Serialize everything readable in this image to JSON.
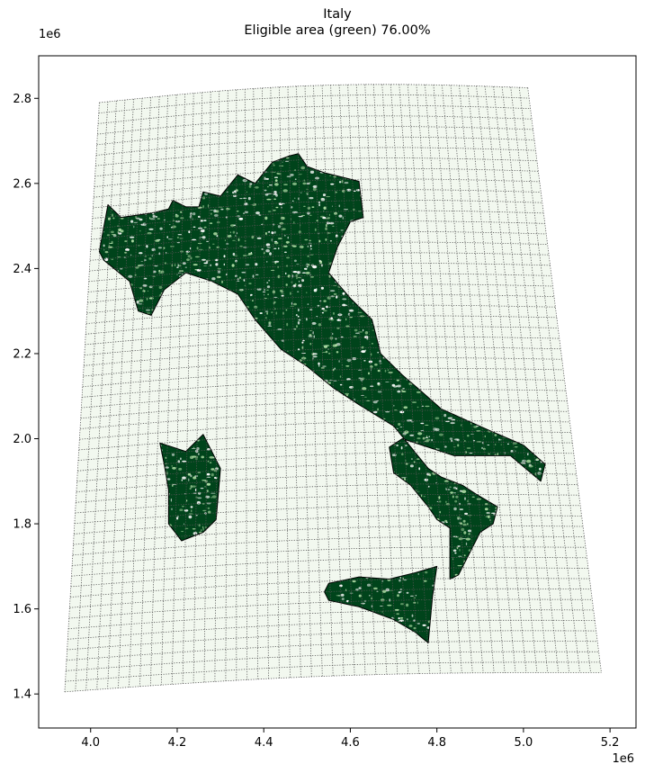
{
  "chart_data": {
    "type": "map",
    "title": "Italy",
    "subtitle": "Eligible area (green) 76.00%",
    "x_offset_label": "1e6",
    "y_offset_label": "1e6",
    "xlim": [
      3.88,
      5.26
    ],
    "ylim": [
      1.32,
      2.9
    ],
    "x_ticks": [
      4.0,
      4.2,
      4.4,
      4.6,
      4.8,
      5.0,
      5.2
    ],
    "x_tick_labels": [
      "4.0",
      "4.2",
      "4.4",
      "4.6",
      "4.8",
      "5.0",
      "5.2"
    ],
    "y_ticks": [
      1.4,
      1.6,
      1.8,
      2.0,
      2.2,
      2.4,
      2.6,
      2.8
    ],
    "y_tick_labels": [
      "1.4",
      "1.6",
      "1.8",
      "2.0",
      "2.2",
      "2.4",
      "2.6",
      "2.8"
    ],
    "eligible_fraction": 0.76,
    "colors": {
      "eligible": "#00441b",
      "ineligible": "#e8f3e4",
      "grid_area": "#f2f8ef",
      "grid_lines": "#555555",
      "outline": "#000000"
    },
    "grid_extent": {
      "corners": [
        [
          4.02,
          2.79
        ],
        [
          5.01,
          2.825
        ],
        [
          5.18,
          1.45
        ],
        [
          3.94,
          1.405
        ]
      ]
    },
    "regions": [
      {
        "name": "Mainland",
        "outline": [
          [
            4.04,
            2.55
          ],
          [
            4.07,
            2.52
          ],
          [
            4.14,
            2.53
          ],
          [
            4.18,
            2.54
          ],
          [
            4.19,
            2.56
          ],
          [
            4.22,
            2.545
          ],
          [
            4.25,
            2.545
          ],
          [
            4.26,
            2.58
          ],
          [
            4.3,
            2.57
          ],
          [
            4.34,
            2.62
          ],
          [
            4.38,
            2.6
          ],
          [
            4.42,
            2.65
          ],
          [
            4.46,
            2.665
          ],
          [
            4.48,
            2.67
          ],
          [
            4.5,
            2.64
          ],
          [
            4.54,
            2.625
          ],
          [
            4.62,
            2.605
          ],
          [
            4.63,
            2.52
          ],
          [
            4.6,
            2.51
          ],
          [
            4.57,
            2.45
          ],
          [
            4.55,
            2.39
          ],
          [
            4.6,
            2.33
          ],
          [
            4.65,
            2.28
          ],
          [
            4.67,
            2.2
          ],
          [
            4.72,
            2.15
          ],
          [
            4.76,
            2.115
          ],
          [
            4.81,
            2.07
          ],
          [
            4.92,
            2.02
          ],
          [
            5.0,
            1.985
          ],
          [
            5.05,
            1.94
          ],
          [
            5.04,
            1.9
          ],
          [
            4.97,
            1.96
          ],
          [
            4.93,
            1.96
          ],
          [
            4.84,
            1.96
          ],
          [
            4.75,
            1.99
          ],
          [
            4.72,
            2.0
          ],
          [
            4.69,
            1.98
          ],
          [
            4.7,
            1.92
          ],
          [
            4.74,
            1.89
          ],
          [
            4.78,
            1.84
          ],
          [
            4.8,
            1.81
          ],
          [
            4.83,
            1.79
          ],
          [
            4.83,
            1.67
          ],
          [
            4.85,
            1.68
          ],
          [
            4.88,
            1.74
          ],
          [
            4.9,
            1.78
          ],
          [
            4.93,
            1.8
          ],
          [
            4.94,
            1.84
          ],
          [
            4.89,
            1.87
          ],
          [
            4.86,
            1.89
          ],
          [
            4.81,
            1.91
          ],
          [
            4.78,
            1.93
          ],
          [
            4.74,
            1.98
          ],
          [
            4.7,
            2.03
          ],
          [
            4.62,
            2.08
          ],
          [
            4.56,
            2.12
          ],
          [
            4.5,
            2.17
          ],
          [
            4.44,
            2.21
          ],
          [
            4.38,
            2.28
          ],
          [
            4.34,
            2.34
          ],
          [
            4.28,
            2.37
          ],
          [
            4.22,
            2.39
          ],
          [
            4.17,
            2.35
          ],
          [
            4.14,
            2.29
          ],
          [
            4.11,
            2.3
          ],
          [
            4.09,
            2.37
          ],
          [
            4.03,
            2.42
          ],
          [
            4.02,
            2.44
          ]
        ]
      },
      {
        "name": "Sicily",
        "outline": [
          [
            4.55,
            1.66
          ],
          [
            4.62,
            1.675
          ],
          [
            4.69,
            1.67
          ],
          [
            4.75,
            1.685
          ],
          [
            4.8,
            1.7
          ],
          [
            4.79,
            1.63
          ],
          [
            4.78,
            1.52
          ],
          [
            4.75,
            1.545
          ],
          [
            4.7,
            1.575
          ],
          [
            4.62,
            1.605
          ],
          [
            4.55,
            1.62
          ],
          [
            4.54,
            1.64
          ]
        ]
      },
      {
        "name": "Sardinia",
        "outline": [
          [
            4.16,
            1.99
          ],
          [
            4.22,
            1.97
          ],
          [
            4.26,
            2.01
          ],
          [
            4.3,
            1.93
          ],
          [
            4.29,
            1.81
          ],
          [
            4.26,
            1.78
          ],
          [
            4.21,
            1.76
          ],
          [
            4.18,
            1.8
          ],
          [
            4.18,
            1.88
          ],
          [
            4.17,
            1.94
          ]
        ]
      }
    ]
  }
}
